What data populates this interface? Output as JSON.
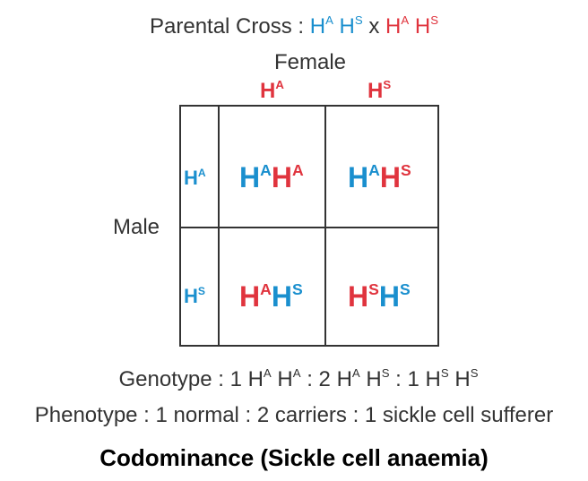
{
  "colors": {
    "maternal": "#e0343e",
    "paternal": "#1a8fce",
    "text": "#333333"
  },
  "cross": {
    "prefix": "Parental Cross : ",
    "paternal_1": {
      "base": "H",
      "sup": "A"
    },
    "paternal_2": {
      "base": "H",
      "sup": "S"
    },
    "times": " x ",
    "maternal_1": {
      "base": "H",
      "sup": "A"
    },
    "maternal_2": {
      "base": "H",
      "sup": "S"
    }
  },
  "female_label": "Female",
  "male_label": "Male",
  "columns": [
    {
      "base": "H",
      "sup": "A"
    },
    {
      "base": "H",
      "sup": "S"
    }
  ],
  "rows": [
    {
      "base": "H",
      "sup": "A"
    },
    {
      "base": "H",
      "sup": "S"
    }
  ],
  "cells": {
    "r1c1": {
      "paternal": {
        "base": "H",
        "sup": "A"
      },
      "maternal": {
        "base": "H",
        "sup": "A"
      }
    },
    "r1c2": {
      "paternal": {
        "base": "H",
        "sup": "A"
      },
      "maternal": {
        "base": "H",
        "sup": "S"
      }
    },
    "r2c1": {
      "maternal": {
        "base": "H",
        "sup": "A"
      },
      "paternal": {
        "base": "H",
        "sup": "S"
      }
    },
    "r2c2": {
      "maternal": {
        "base": "H",
        "sup": "S"
      },
      "paternal": {
        "base": "H",
        "sup": "S"
      }
    }
  },
  "genotype": {
    "prefix": "Genotype : 1 ",
    "g1a": {
      "base": "H",
      "sup": "A"
    },
    "g1b": {
      "base": "H",
      "sup": "A"
    },
    "sep1": " : 2 ",
    "g2a": {
      "base": "H",
      "sup": "A"
    },
    "g2b": {
      "base": "H",
      "sup": "S"
    },
    "sep2": " : 1 ",
    "g3a": {
      "base": "H",
      "sup": "S"
    },
    "g3b": {
      "base": "H",
      "sup": "S"
    }
  },
  "phenotype": "Phenotype : 1 normal : 2 carriers : 1 sickle cell sufferer",
  "caption": "Codominance (Sickle cell anaemia)"
}
